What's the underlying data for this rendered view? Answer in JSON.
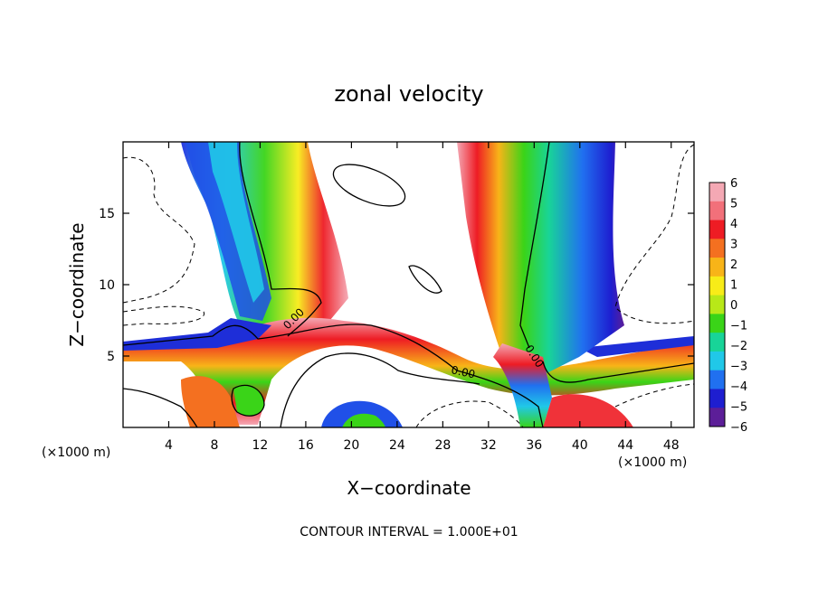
{
  "chart_data": {
    "type": "heatmap",
    "title": "zonal velocity",
    "xlabel": "X−coordinate",
    "ylabel": "Z−coordinate",
    "x_unit_label_left": "(×1000 m)",
    "x_unit_label_right": "(×1000 m)",
    "footer": "CONTOUR INTERVAL = 1.000E+01",
    "xlim": [
      0,
      50
    ],
    "ylim": [
      0,
      20
    ],
    "x_ticks": [
      4,
      8,
      12,
      16,
      20,
      24,
      28,
      32,
      36,
      40,
      44,
      48
    ],
    "y_ticks": [
      5,
      10,
      15
    ],
    "contour_labels": [
      "0.00",
      "0.00",
      "0.00"
    ],
    "colorbar": {
      "range": [
        -6,
        6
      ],
      "tick_labels": [
        "6",
        "5",
        "4",
        "3",
        "2",
        "1",
        "0",
        "−1",
        "−2",
        "−3",
        "−4",
        "−5",
        "−6"
      ],
      "colors": [
        "#f4a8b4",
        "#f2707a",
        "#ee1c24",
        "#f47020",
        "#f8b418",
        "#f8ec18",
        "#b8e818",
        "#3ad418",
        "#18d498",
        "#20c8e8",
        "#2070f0",
        "#1e1ed0",
        "#5c1e98"
      ]
    }
  }
}
